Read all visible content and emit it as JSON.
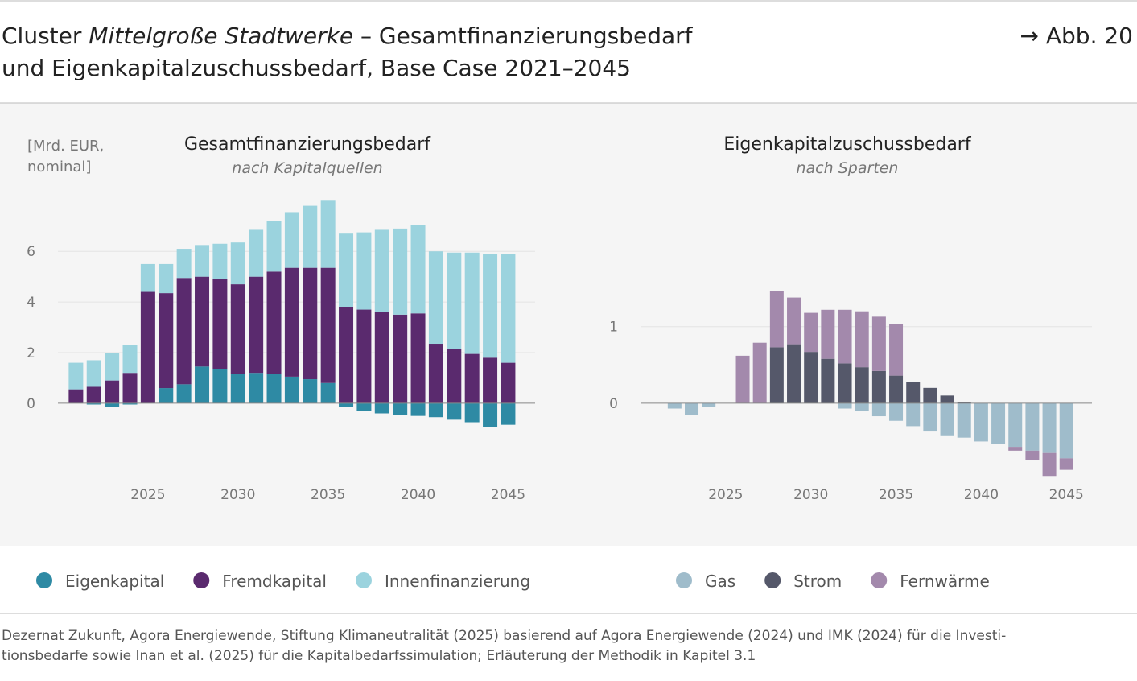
{
  "header": {
    "title_parts": [
      "Cluster ",
      "Mittelgroße Stadtwerke",
      " – Gesamtfinanzierungsbedarf"
    ],
    "title_line2": "und Eigenkapitalzuschussbedarf, Base Case 2021–2045",
    "figure_ref": "→ Abb. 20"
  },
  "footer": {
    "source_lines": [
      "Dezernat Zukunft, Agora Energiewende, Stiftung Klimaneutralität (2025) basierend auf Agora Energiewende (2024) und IMK (2024) für die Investi-",
      "tionsbedarfe sowie Inan et al. (2025) für die Kapitalbedarfssimulation; Erläuterung der Methodik in Kapitel 3.1"
    ]
  },
  "chart_data": [
    {
      "type": "bar",
      "stacked": true,
      "title": "Gesamtfinanzierungsbedarf",
      "subtitle": "nach Kapitalquellen",
      "y_label": "[Mrd. EUR, nominal]",
      "x": [
        2021,
        2022,
        2023,
        2024,
        2025,
        2026,
        2027,
        2028,
        2029,
        2030,
        2031,
        2032,
        2033,
        2034,
        2035,
        2036,
        2037,
        2038,
        2039,
        2040,
        2041,
        2042,
        2043,
        2044,
        2045
      ],
      "xlim": [
        2020,
        2046.5
      ],
      "xticks": [
        2025,
        2030,
        2035,
        2040,
        2045
      ],
      "ylim": [
        -2.8,
        8.2
      ],
      "yticks": [
        0,
        2,
        4,
        6
      ],
      "grid": true,
      "series": [
        {
          "name": "Eigenkapital",
          "color": "#2e8aa4",
          "values": [
            0,
            -0.05,
            -0.15,
            -0.05,
            0,
            0.6,
            0.75,
            1.45,
            1.35,
            1.15,
            1.2,
            1.15,
            1.05,
            0.95,
            0.8,
            -0.15,
            -0.3,
            -0.4,
            -0.45,
            -0.5,
            -0.55,
            -0.65,
            -0.75,
            -0.95,
            -0.85
          ]
        },
        {
          "name": "Fremdkapital",
          "color": "#5a2a6e",
          "values": [
            0.55,
            0.65,
            0.9,
            1.2,
            4.4,
            3.75,
            4.2,
            3.55,
            3.55,
            3.55,
            3.8,
            4.05,
            4.3,
            4.4,
            4.55,
            3.8,
            3.7,
            3.6,
            3.5,
            3.55,
            2.35,
            2.15,
            1.95,
            1.8,
            1.6
          ]
        },
        {
          "name": "Innenfinanzierung",
          "color": "#9bd3de",
          "values": [
            1.05,
            1.05,
            1.1,
            1.1,
            1.1,
            1.15,
            1.15,
            1.25,
            1.4,
            1.65,
            1.85,
            2.0,
            2.2,
            2.45,
            2.65,
            2.9,
            3.05,
            3.25,
            3.4,
            3.5,
            3.65,
            3.8,
            4.0,
            4.1,
            4.3
          ]
        }
      ]
    },
    {
      "type": "bar",
      "stacked": true,
      "title": "Eigenkapitalzuschussbedarf",
      "subtitle": "nach Sparten",
      "x": [
        2021,
        2022,
        2023,
        2024,
        2025,
        2026,
        2027,
        2028,
        2029,
        2030,
        2031,
        2032,
        2033,
        2034,
        2035,
        2036,
        2037,
        2038,
        2039,
        2040,
        2041,
        2042,
        2043,
        2044,
        2045
      ],
      "xlim": [
        2020,
        2046.5
      ],
      "xticks": [
        2025,
        2030,
        2035,
        2040,
        2045
      ],
      "ylim": [
        -1.0,
        2.7
      ],
      "yticks": [
        0,
        1
      ],
      "grid": true,
      "series": [
        {
          "name": "Gas",
          "color": "#9fbccb",
          "values": [
            0,
            -0.07,
            -0.15,
            -0.05,
            0,
            0,
            0,
            0,
            0,
            0,
            0,
            -0.07,
            -0.1,
            -0.17,
            -0.23,
            -0.3,
            -0.37,
            -0.43,
            -0.45,
            -0.5,
            -0.53,
            -0.57,
            -0.62,
            -0.65,
            -0.72
          ]
        },
        {
          "name": "Strom",
          "color": "#55586a",
          "values": [
            0,
            0,
            0,
            0,
            0,
            0,
            0,
            0.73,
            0.77,
            0.67,
            0.58,
            0.52,
            0.47,
            0.42,
            0.36,
            0.28,
            0.2,
            0.1,
            0.01,
            0,
            0,
            0,
            0,
            0,
            0
          ]
        },
        {
          "name": "Fernwärme",
          "color": "#a389ac",
          "values": [
            0,
            0,
            0,
            0,
            0,
            0.62,
            0.79,
            0.73,
            0.61,
            0.51,
            0.64,
            0.7,
            0.73,
            0.71,
            0.67,
            0,
            0,
            0,
            0,
            0,
            0,
            -0.05,
            -0.12,
            -0.3,
            -0.15
          ]
        }
      ]
    }
  ]
}
